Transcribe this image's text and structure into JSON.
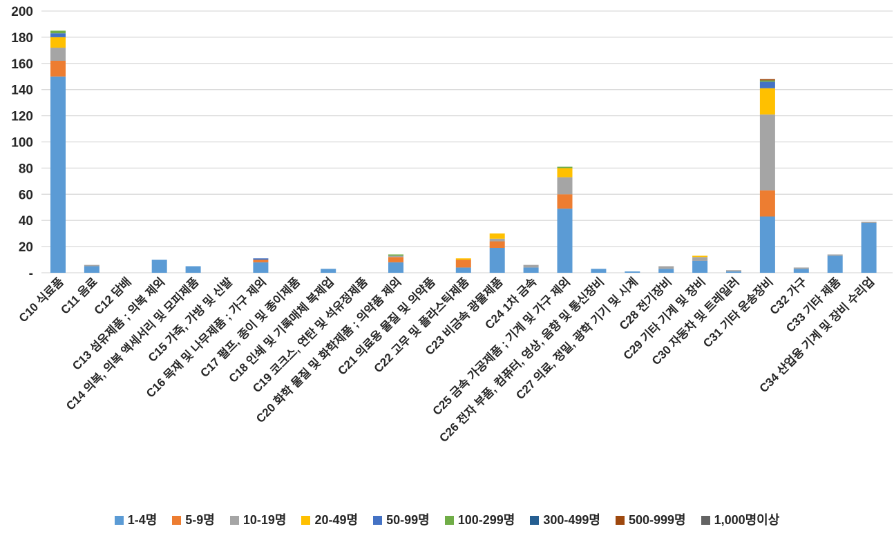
{
  "chart_data": {
    "type": "bar",
    "stacked": true,
    "title": "",
    "xlabel": "",
    "ylabel": "",
    "ylim": [
      0,
      200
    ],
    "y_tick_interval": 20,
    "y_tick_labels": [
      "-",
      "20",
      "40",
      "60",
      "80",
      "100",
      "120",
      "140",
      "160",
      "180",
      "200"
    ],
    "grid": true,
    "legend_position": "bottom",
    "gridline_color": "#D9D9D9",
    "axis_text_color": "#262626",
    "categories": [
      "C10 식료품",
      "C11 음료",
      "C12 담배",
      "C13 섬유제품 ; 의복 제외",
      "C14 의복, 의복 액세서리 및 모피제품",
      "C15 가죽, 가방 및 신발",
      "C16 목재 및 나무제품 ; 가구 제외",
      "C17 펄프, 종이 및 종이제품",
      "C18 인쇄 및 기록매체 복제업",
      "C19 코크스, 연탄 및 석유정제품",
      "C20 화학 물질 및 화학제품 ; 의약품 제외",
      "C21 의료용 물질 및 의약품",
      "C22 고무 및 플라스틱제품",
      "C23 비금속 광물제품",
      "C24 1차 금속",
      "C25 금속 가공제품 ; 기계 및 가구 제외",
      "C26 전자 부품, 컴퓨터, 영상, 음향 및 통신장비",
      "C27 의료, 정밀, 광학 기기 및 시계",
      "C28 전기장비",
      "C29 기타 기계 및 장비",
      "C30 자동차 및 트레일러",
      "C31 기타 운송장비",
      "C32 가구",
      "C33 기타 제품",
      "C34 산업용 기계 및 장비 수리업"
    ],
    "series": [
      {
        "name": "1-4명",
        "color": "#5B9BD5",
        "values": [
          150,
          5,
          0,
          10,
          5,
          0,
          8,
          0,
          3,
          0,
          8,
          0,
          4,
          19,
          4,
          49,
          3,
          1,
          3,
          9,
          1,
          43,
          3,
          13,
          38
        ]
      },
      {
        "name": "5-9명",
        "color": "#ED7D31",
        "values": [
          12,
          0,
          0,
          0,
          0,
          0,
          2,
          0,
          0,
          0,
          4,
          0,
          6,
          5,
          0,
          11,
          0,
          0,
          0,
          0,
          0,
          20,
          0,
          0,
          0
        ]
      },
      {
        "name": "10-19명",
        "color": "#A5A5A5",
        "values": [
          10,
          1,
          0,
          0,
          0,
          0,
          0,
          0,
          0,
          0,
          1,
          0,
          0,
          2,
          2,
          13,
          0,
          0,
          2,
          3,
          1,
          58,
          1,
          1,
          1
        ]
      },
      {
        "name": "20-49명",
        "color": "#FFC000",
        "values": [
          8,
          0,
          0,
          0,
          0,
          0,
          0,
          0,
          0,
          0,
          0,
          0,
          1,
          4,
          0,
          7,
          0,
          0,
          0,
          1,
          0,
          20,
          0,
          0,
          0
        ]
      },
      {
        "name": "50-99명",
        "color": "#4472C4",
        "values": [
          3,
          0,
          0,
          0,
          0,
          0,
          1,
          0,
          0,
          0,
          0,
          0,
          0,
          0,
          0,
          0,
          0,
          0,
          0,
          0,
          0,
          5,
          0,
          0,
          0
        ]
      },
      {
        "name": "100-299명",
        "color": "#70AD47",
        "values": [
          2,
          0,
          0,
          0,
          0,
          0,
          0,
          0,
          0,
          0,
          1,
          0,
          0,
          0,
          0,
          1,
          0,
          0,
          0,
          0,
          0,
          1,
          0,
          0,
          0
        ]
      },
      {
        "name": "300-499명",
        "color": "#255E91",
        "values": [
          0,
          0,
          0,
          0,
          0,
          0,
          0,
          0,
          0,
          0,
          0,
          0,
          0,
          0,
          0,
          0,
          0,
          0,
          0,
          0,
          0,
          0,
          0,
          0,
          0
        ]
      },
      {
        "name": "500-999명",
        "color": "#9E480E",
        "values": [
          0,
          0,
          0,
          0,
          0,
          0,
          0,
          0,
          0,
          0,
          0,
          0,
          0,
          0,
          0,
          0,
          0,
          0,
          0,
          0,
          0,
          1,
          0,
          0,
          0
        ]
      },
      {
        "name": "1,000명이상",
        "color": "#636363",
        "values": [
          0,
          0,
          0,
          0,
          0,
          0,
          0,
          0,
          0,
          0,
          0,
          0,
          0,
          0,
          0,
          0,
          0,
          0,
          0,
          0,
          0,
          0,
          0,
          0,
          0
        ]
      }
    ]
  }
}
